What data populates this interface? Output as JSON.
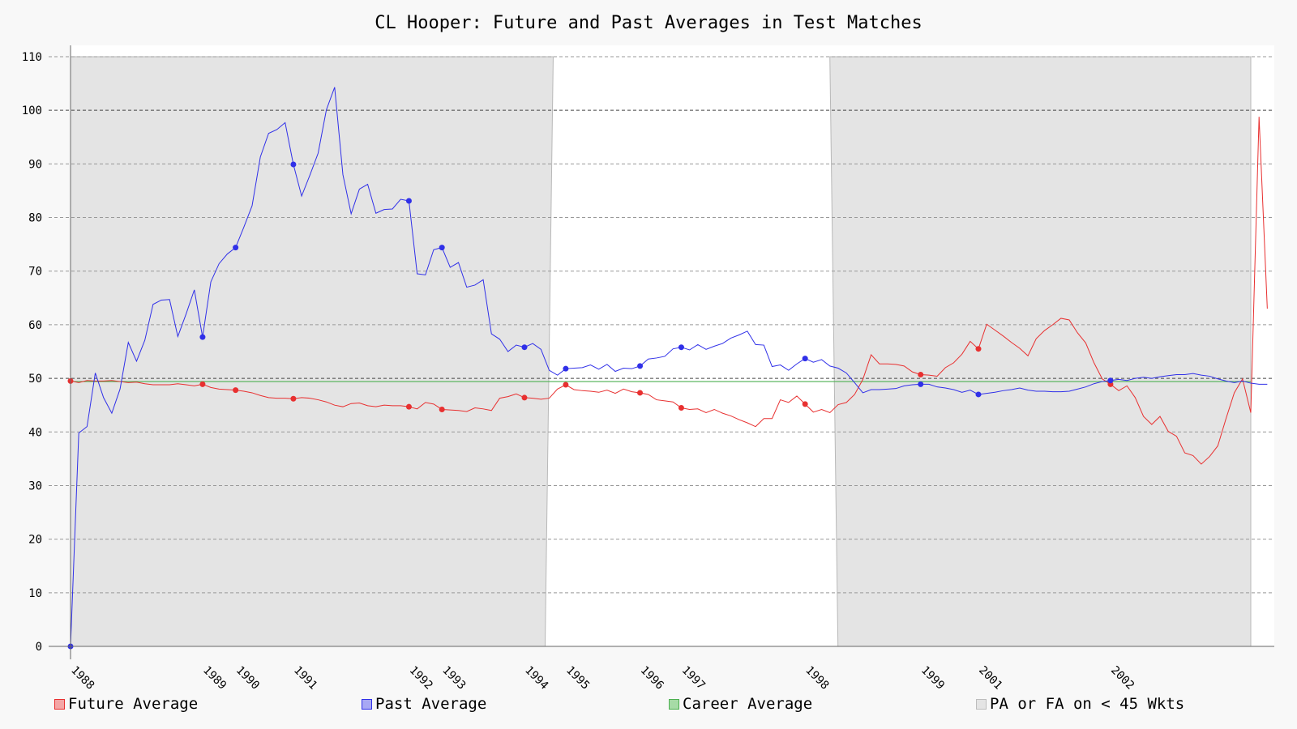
{
  "chart_data": {
    "type": "line",
    "title": "CL Hooper: Future and Past Averages in Test Matches",
    "xlabel": "",
    "ylabel": "",
    "ylim": [
      0,
      110
    ],
    "yticks": [
      0,
      10,
      20,
      30,
      40,
      50,
      60,
      70,
      80,
      90,
      100,
      110
    ],
    "grid": true,
    "legend_position": "bottom",
    "x_count": 144,
    "x_tick_labels": [
      {
        "x": 0,
        "label": "1988"
      },
      {
        "x": 16,
        "label": "1989"
      },
      {
        "x": 20,
        "label": "1990"
      },
      {
        "x": 27,
        "label": "1991"
      },
      {
        "x": 41,
        "label": "1992"
      },
      {
        "x": 45,
        "label": "1993"
      },
      {
        "x": 55,
        "label": "1994"
      },
      {
        "x": 60,
        "label": "1995"
      },
      {
        "x": 69,
        "label": "1996"
      },
      {
        "x": 74,
        "label": "1997"
      },
      {
        "x": 89,
        "label": "1998"
      },
      {
        "x": 103,
        "label": "1999"
      },
      {
        "x": 110,
        "label": "2001"
      },
      {
        "x": 126,
        "label": "2002"
      }
    ],
    "series": [
      {
        "name": "Future Average",
        "color": "#e83030",
        "values": [
          49.5,
          49.2,
          49.6,
          49.5,
          49.5,
          49.6,
          49.4,
          49.2,
          49.3,
          49.0,
          48.8,
          48.8,
          48.8,
          49.0,
          48.8,
          48.6,
          48.9,
          48.3,
          48.0,
          47.9,
          47.8,
          47.6,
          47.3,
          46.8,
          46.4,
          46.3,
          46.3,
          46.2,
          46.4,
          46.3,
          46.0,
          45.6,
          45.0,
          44.7,
          45.3,
          45.4,
          44.9,
          44.7,
          45.0,
          44.9,
          44.9,
          44.7,
          44.3,
          45.5,
          45.2,
          44.2,
          44.1,
          44.0,
          43.8,
          44.5,
          44.3,
          44.0,
          46.3,
          46.6,
          47.1,
          46.4,
          46.3,
          46.1,
          46.3,
          48.0,
          48.8,
          47.9,
          47.7,
          47.6,
          47.4,
          47.8,
          47.2,
          48.0,
          47.5,
          47.3,
          47.0,
          46.0,
          45.8,
          45.6,
          44.5,
          44.2,
          44.3,
          43.6,
          44.2,
          43.5,
          43.0,
          42.3,
          41.7,
          41.0,
          42.5,
          42.5,
          46.0,
          45.5,
          46.7,
          45.2,
          43.7,
          44.2,
          43.6,
          45.1,
          45.5,
          47.0,
          49.8,
          54.4,
          52.7,
          52.7,
          52.6,
          52.3,
          51.2,
          50.7,
          50.6,
          50.4,
          52.0,
          52.9,
          54.5,
          56.9,
          55.5,
          60.1,
          59.0,
          57.9,
          56.7,
          55.6,
          54.2,
          57.4,
          58.9,
          60.0,
          61.2,
          60.9,
          58.5,
          56.6,
          52.9,
          49.9,
          48.9,
          47.7,
          48.6,
          46.4,
          42.9,
          41.4,
          42.9,
          40.1,
          39.2,
          36.1,
          35.6,
          34.0,
          35.4,
          37.4,
          42.5,
          47.3,
          49.9,
          43.6,
          98.8,
          63.0
        ]
      },
      {
        "name": "Past Average",
        "color": "#3030e8",
        "values": [
          0.0,
          39.8,
          41.0,
          51.0,
          46.4,
          43.5,
          48.0,
          56.7,
          53.2,
          57.1,
          63.8,
          64.6,
          64.7,
          57.8,
          62.0,
          66.5,
          57.7,
          68.0,
          71.4,
          73.2,
          74.4,
          78.2,
          82.2,
          91.3,
          95.7,
          96.4,
          97.7,
          89.9,
          84.0,
          87.9,
          92.0,
          100.1,
          104.3,
          88.0,
          80.7,
          85.3,
          86.2,
          80.8,
          81.5,
          81.6,
          83.4,
          83.1,
          69.5,
          69.3,
          74.0,
          74.4,
          70.7,
          71.6,
          67.0,
          67.4,
          68.4,
          58.3,
          57.3,
          55.0,
          56.2,
          55.8,
          56.5,
          55.4,
          51.5,
          50.6,
          51.8,
          51.9,
          52.0,
          52.5,
          51.7,
          52.6,
          51.3,
          51.9,
          51.8,
          52.3,
          53.6,
          53.8,
          54.1,
          55.5,
          55.8,
          55.3,
          56.3,
          55.4,
          56.0,
          56.5,
          57.5,
          58.1,
          58.8,
          56.3,
          56.2,
          52.2,
          52.5,
          51.5,
          52.7,
          53.7,
          53.0,
          53.5,
          52.3,
          51.9,
          51.0,
          49.2,
          47.3,
          47.9,
          47.9,
          48.0,
          48.1,
          48.6,
          48.8,
          48.9,
          48.9,
          48.4,
          48.2,
          47.9,
          47.4,
          47.8,
          47.0,
          47.2,
          47.4,
          47.7,
          47.9,
          48.2,
          47.8,
          47.6,
          47.6,
          47.5,
          47.5,
          47.6,
          48.0,
          48.4,
          49.0,
          49.4,
          49.6,
          49.8,
          49.6,
          50.0,
          50.2,
          50.0,
          50.3,
          50.5,
          50.7,
          50.7,
          50.9,
          50.6,
          50.4,
          49.9,
          49.5,
          49.2,
          49.5,
          49.1,
          48.9,
          48.9
        ]
      },
      {
        "name": "Career Average",
        "color": "#4caf50",
        "value": 49.4
      },
      {
        "name": "PA or FA on < 45 Wkts",
        "color": "#e4e4e4",
        "shaded_ranges": [
          [
            0,
            57.5
          ],
          [
            92,
            143
          ]
        ]
      }
    ],
    "markers": {
      "Future Average": [
        0,
        16,
        20,
        27,
        41,
        45,
        55,
        60,
        69,
        74,
        89,
        103,
        110,
        126
      ],
      "Past Average": [
        0,
        16,
        20,
        27,
        41,
        45,
        55,
        60,
        69,
        74,
        89,
        103,
        110,
        126
      ]
    },
    "reference_lines": [
      50,
      100
    ]
  }
}
